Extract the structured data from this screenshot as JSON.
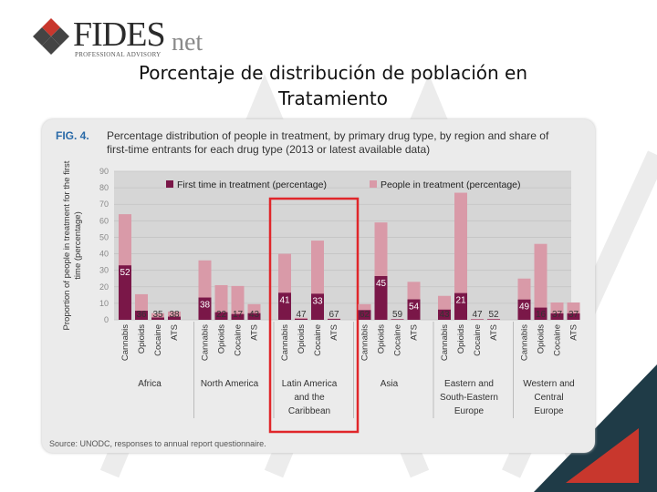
{
  "header": {
    "logo_main": "FIDES",
    "logo_suffix": "net",
    "logo_tagline": "PROFESSIONAL ADVISORY",
    "slide_title_line1": "Porcentaje de distribución de población en",
    "slide_title_line2": "Tratamiento"
  },
  "figure": {
    "label": "FIG. 4.",
    "caption_line1": "Percentage distribution of people in treatment, by primary drug type, by region and share of",
    "caption_line2": "first-time entrants for each drug type (2013 or latest available data)",
    "source": "Source: UNODC, responses to annual report questionnaire."
  },
  "colors": {
    "first_time": "#7a1748",
    "people": "#d99aa8",
    "highlight_box": "#e0262a",
    "plot_bg": "#d6d6d6",
    "panel_bg": "#ebebeb"
  },
  "chart_data": {
    "type": "bar",
    "ylabel": "Proportion of people in treatment for the first time (percentage)",
    "ylim": [
      0,
      90
    ],
    "yticks": [
      0,
      10,
      20,
      30,
      40,
      50,
      60,
      70,
      80,
      90
    ],
    "grid": true,
    "legend_position": "top",
    "series": [
      {
        "name": "First time in treatment (percentage)",
        "color": "#7a1748"
      },
      {
        "name": "People in treatment (percentage)",
        "color": "#d99aa8"
      }
    ],
    "groups": [
      {
        "name": "Africa",
        "label_lines": [
          "Africa"
        ],
        "bars": [
          {
            "category": "Cannabis",
            "people": 64,
            "first_time": 33,
            "share_label": "52"
          },
          {
            "category": "Opioids",
            "people": 15.5,
            "first_time": 5.5,
            "share_label": "36"
          },
          {
            "category": "Cocaine",
            "people": 4,
            "first_time": 1.4,
            "share_label": "35"
          },
          {
            "category": "ATS",
            "people": 5,
            "first_time": 1.9,
            "share_label": "38"
          }
        ]
      },
      {
        "name": "North America",
        "label_lines": [
          "North America"
        ],
        "bars": [
          {
            "category": "Cannabis",
            "people": 36,
            "first_time": 13.5,
            "share_label": "38"
          },
          {
            "category": "Opioids",
            "people": 21,
            "first_time": 4.6,
            "share_label": "22"
          },
          {
            "category": "Cocaine",
            "people": 20.5,
            "first_time": 3.5,
            "share_label": "17"
          },
          {
            "category": "ATS",
            "people": 9.5,
            "first_time": 4,
            "share_label": "43"
          }
        ]
      },
      {
        "name": "Latin America and the Caribbean",
        "label_lines": [
          "Latin America",
          "and the",
          "Caribbean"
        ],
        "highlighted": true,
        "bars": [
          {
            "category": "Cannabis",
            "people": 40,
            "first_time": 16.4,
            "share_label": "41"
          },
          {
            "category": "Opioids",
            "people": 1.2,
            "first_time": 0.6,
            "share_label": "47"
          },
          {
            "category": "Cocaine",
            "people": 48,
            "first_time": 15.8,
            "share_label": "33"
          },
          {
            "category": "ATS",
            "people": 0.8,
            "first_time": 0.5,
            "share_label": "67"
          }
        ]
      },
      {
        "name": "Asia",
        "label_lines": [
          "Asia"
        ],
        "bars": [
          {
            "category": "Cannabis",
            "people": 9.5,
            "first_time": 5.9,
            "share_label": "62"
          },
          {
            "category": "Opioids",
            "people": 59,
            "first_time": 26.5,
            "share_label": "45"
          },
          {
            "category": "Cocaine",
            "people": 0.5,
            "first_time": 0.3,
            "share_label": "59"
          },
          {
            "category": "ATS",
            "people": 23,
            "first_time": 12.4,
            "share_label": "54"
          }
        ]
      },
      {
        "name": "Eastern and South-Eastern Europe",
        "label_lines": [
          "Eastern and",
          "South-Eastern",
          "Europe"
        ],
        "bars": [
          {
            "category": "Cannabis",
            "people": 14.5,
            "first_time": 6.2,
            "share_label": "43"
          },
          {
            "category": "Opioids",
            "people": 77,
            "first_time": 16.2,
            "share_label": "21"
          },
          {
            "category": "Cocaine",
            "people": 0.5,
            "first_time": 0.2,
            "share_label": "47"
          },
          {
            "category": "ATS",
            "people": 0.6,
            "first_time": 0.3,
            "share_label": "52"
          }
        ]
      },
      {
        "name": "Western and Central Europe",
        "label_lines": [
          "Western and",
          "Central",
          "Europe"
        ],
        "bars": [
          {
            "category": "Cannabis",
            "people": 25,
            "first_time": 12.3,
            "share_label": "49"
          },
          {
            "category": "Opioids",
            "people": 46,
            "first_time": 7.4,
            "share_label": "16"
          },
          {
            "category": "Cocaine",
            "people": 10.5,
            "first_time": 3.9,
            "share_label": "37"
          },
          {
            "category": "ATS",
            "people": 10.5,
            "first_time": 3.9,
            "share_label": "37"
          }
        ]
      }
    ]
  }
}
